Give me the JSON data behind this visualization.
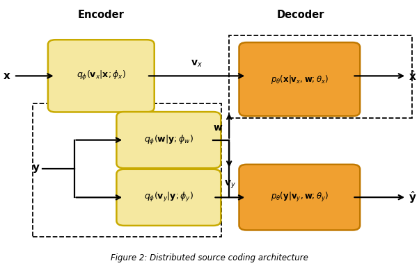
{
  "fig_width": 6.02,
  "fig_height": 3.86,
  "dpi": 100,
  "bg_color": "#ffffff",
  "yellow_fill": "#f5e8a0",
  "yellow_edge": "#c8aa00",
  "orange_fill": "#f0a030",
  "orange_edge": "#c07800",
  "caption": "Figure 2: Distributed source coding architecture"
}
